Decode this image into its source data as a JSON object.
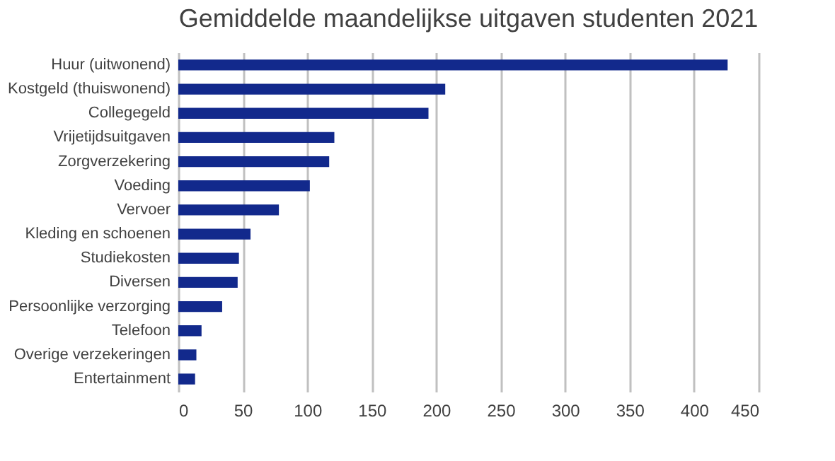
{
  "chart_data": {
    "type": "bar",
    "orientation": "horizontal",
    "title": "Gemiddelde maandelijkse uitgaven studenten 2021",
    "categories": [
      "Huur (uitwonend)",
      "Kostgeld (thuiswonend)",
      "Collegegeld",
      "Vrijetijdsuitgaven",
      "Zorgverzekering",
      "Voeding",
      "Vervoer",
      "Kleding en schoenen",
      "Studiekosten",
      "Diversen",
      "Persoonlijke verzorging",
      "Telefoon",
      "Overige verzekeringen",
      "Entertainment"
    ],
    "values": [
      426,
      207,
      194,
      121,
      117,
      102,
      78,
      56,
      47,
      46,
      34,
      18,
      14,
      13
    ],
    "color": "#12298c",
    "xlim": [
      0,
      450
    ],
    "xticks": [
      0,
      50,
      100,
      150,
      200,
      250,
      300,
      350,
      400,
      450
    ],
    "grid": "x"
  }
}
